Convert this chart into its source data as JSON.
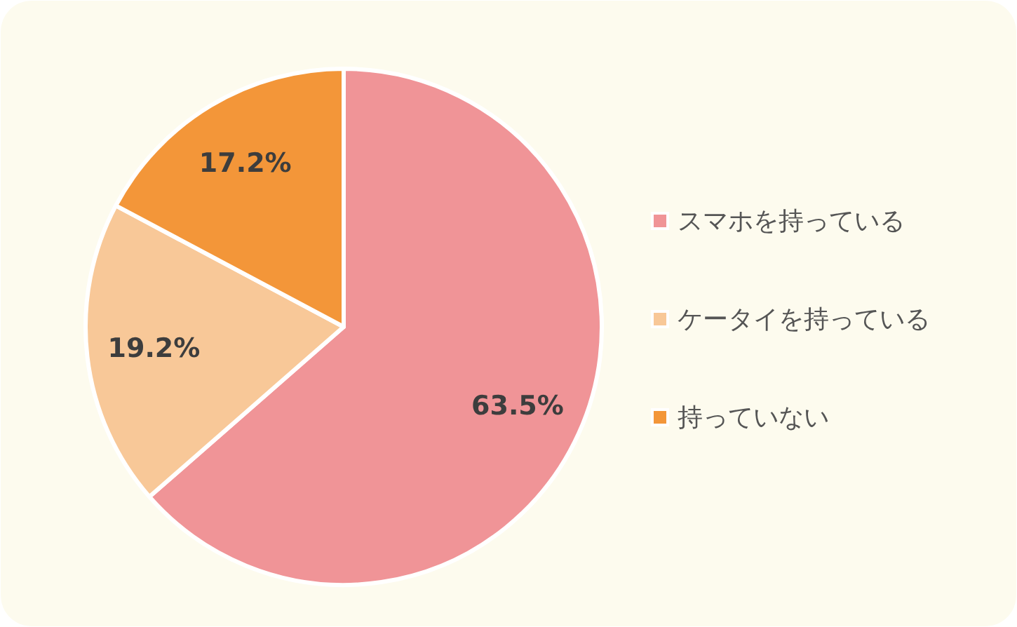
{
  "chart_data": {
    "type": "pie",
    "categories": [
      "スマホを持っている",
      "ケータイを持っている",
      "持っていない"
    ],
    "values": [
      63.5,
      19.2,
      17.2
    ],
    "colors": [
      "#f09497",
      "#f8c898",
      "#f39639"
    ],
    "value_labels": [
      "63.5%",
      "19.2%",
      "17.2%"
    ],
    "legend": "right"
  }
}
